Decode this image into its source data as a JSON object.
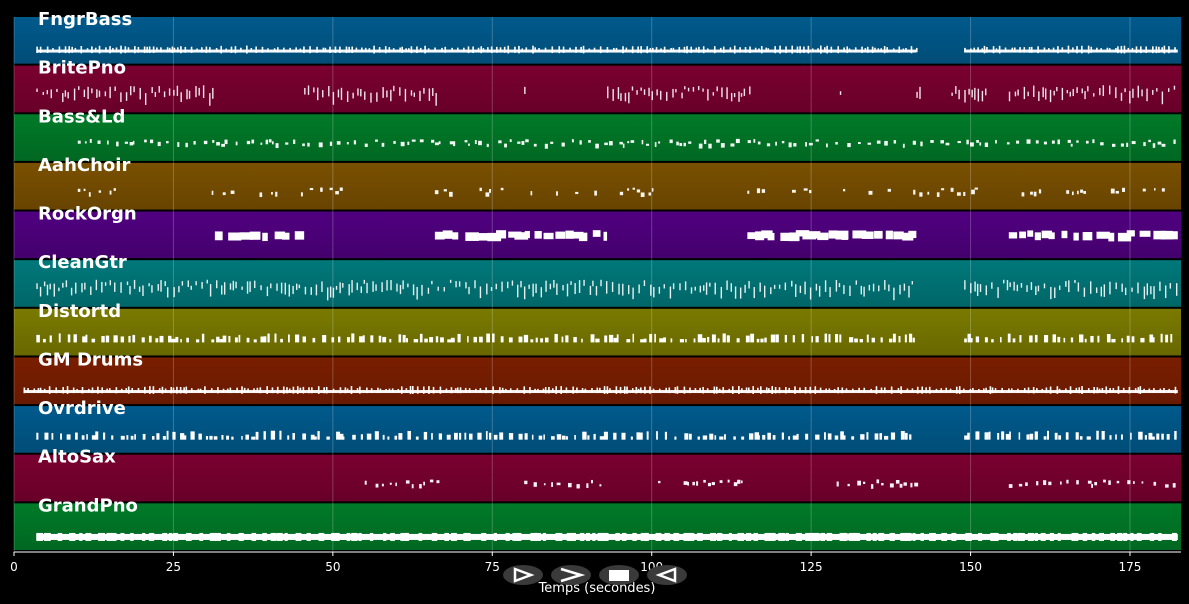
{
  "chart_data": {
    "type": "piano-roll",
    "xlabel": "Temps (secondes)",
    "xlim": [
      0,
      183
    ],
    "x_ticks": [
      0,
      25,
      50,
      75,
      100,
      125,
      150,
      175
    ],
    "grid": true,
    "tracks": [
      {
        "name": "FngrBass",
        "color": "#005a8c",
        "segments": [
          [
            3.5,
            141.5
          ],
          [
            149,
            182.5
          ]
        ],
        "density": "dense",
        "pattern": "line"
      },
      {
        "name": "BritePno",
        "color": "#7a0030",
        "segments": [
          [
            3.5,
            31.5
          ],
          [
            45.5,
            66.5
          ],
          [
            80,
            80.5
          ],
          [
            93,
            115.5
          ],
          [
            129.5,
            130
          ],
          [
            141.5,
            142
          ],
          [
            147,
            152.5
          ],
          [
            156,
            182.5
          ]
        ],
        "density": "dense",
        "pattern": "chords"
      },
      {
        "name": "Bass&Ld",
        "color": "#007a28",
        "segments": [
          [
            10,
            182.5
          ]
        ],
        "density": "sparse",
        "pattern": "notes"
      },
      {
        "name": "AahChoir",
        "color": "#7a5000",
        "segments": [
          [
            10,
            16
          ],
          [
            31,
            34.5
          ],
          [
            38.5,
            42
          ],
          [
            45,
            51.5
          ],
          [
            66,
            69.5
          ],
          [
            73,
            76.5
          ],
          [
            81,
            81.5
          ],
          [
            85,
            85.5
          ],
          [
            88,
            88.5
          ],
          [
            91,
            92
          ],
          [
            95,
            100.5
          ],
          [
            115,
            118
          ],
          [
            122,
            125
          ],
          [
            130,
            130.5
          ],
          [
            134,
            134.5
          ],
          [
            137,
            137.5
          ],
          [
            141,
            151
          ],
          [
            158,
            161
          ],
          [
            165,
            168
          ],
          [
            172,
            174
          ],
          [
            177,
            181
          ]
        ],
        "density": "sparse",
        "pattern": "notes"
      },
      {
        "name": "RockOrgn",
        "color": "#500080",
        "segments": [
          [
            31.5,
            45.5
          ],
          [
            66,
            93
          ],
          [
            115,
            141.5
          ],
          [
            156,
            182.5
          ]
        ],
        "density": "solid",
        "pattern": "blocks"
      },
      {
        "name": "CleanGtr",
        "color": "#00787a",
        "segments": [
          [
            3.5,
            141.5
          ],
          [
            149,
            182.5
          ]
        ],
        "density": "dense",
        "pattern": "chords"
      },
      {
        "name": "Distortd",
        "color": "#7a7a00",
        "segments": [
          [
            3.5,
            141.5
          ],
          [
            149,
            182.5
          ]
        ],
        "density": "dense",
        "pattern": "blocks"
      },
      {
        "name": "GM Drums",
        "color": "#7a1e00",
        "segments": [
          [
            1.5,
            182.5
          ]
        ],
        "density": "dense",
        "pattern": "line"
      },
      {
        "name": "Ovrdrive",
        "color": "#005a8c",
        "segments": [
          [
            3.5,
            141.5
          ],
          [
            149,
            182.5
          ]
        ],
        "density": "dense",
        "pattern": "blocks"
      },
      {
        "name": "AltoSax",
        "color": "#7a0030",
        "segments": [
          [
            55,
            66.5
          ],
          [
            80,
            93
          ],
          [
            101,
            101.5
          ],
          [
            105,
            115
          ],
          [
            129,
            141.5
          ],
          [
            156,
            182.5
          ]
        ],
        "density": "sparse",
        "pattern": "notes"
      },
      {
        "name": "GrandPno",
        "color": "#007a28",
        "segments": [
          [
            3.5,
            182.5
          ]
        ],
        "density": "solid",
        "pattern": "thick-line"
      }
    ]
  },
  "controls": [
    {
      "name": "play",
      "icon": "play-icon"
    },
    {
      "name": "forward",
      "icon": "forward-icon"
    },
    {
      "name": "stop",
      "icon": "stop-icon"
    },
    {
      "name": "back",
      "icon": "back-icon"
    }
  ]
}
